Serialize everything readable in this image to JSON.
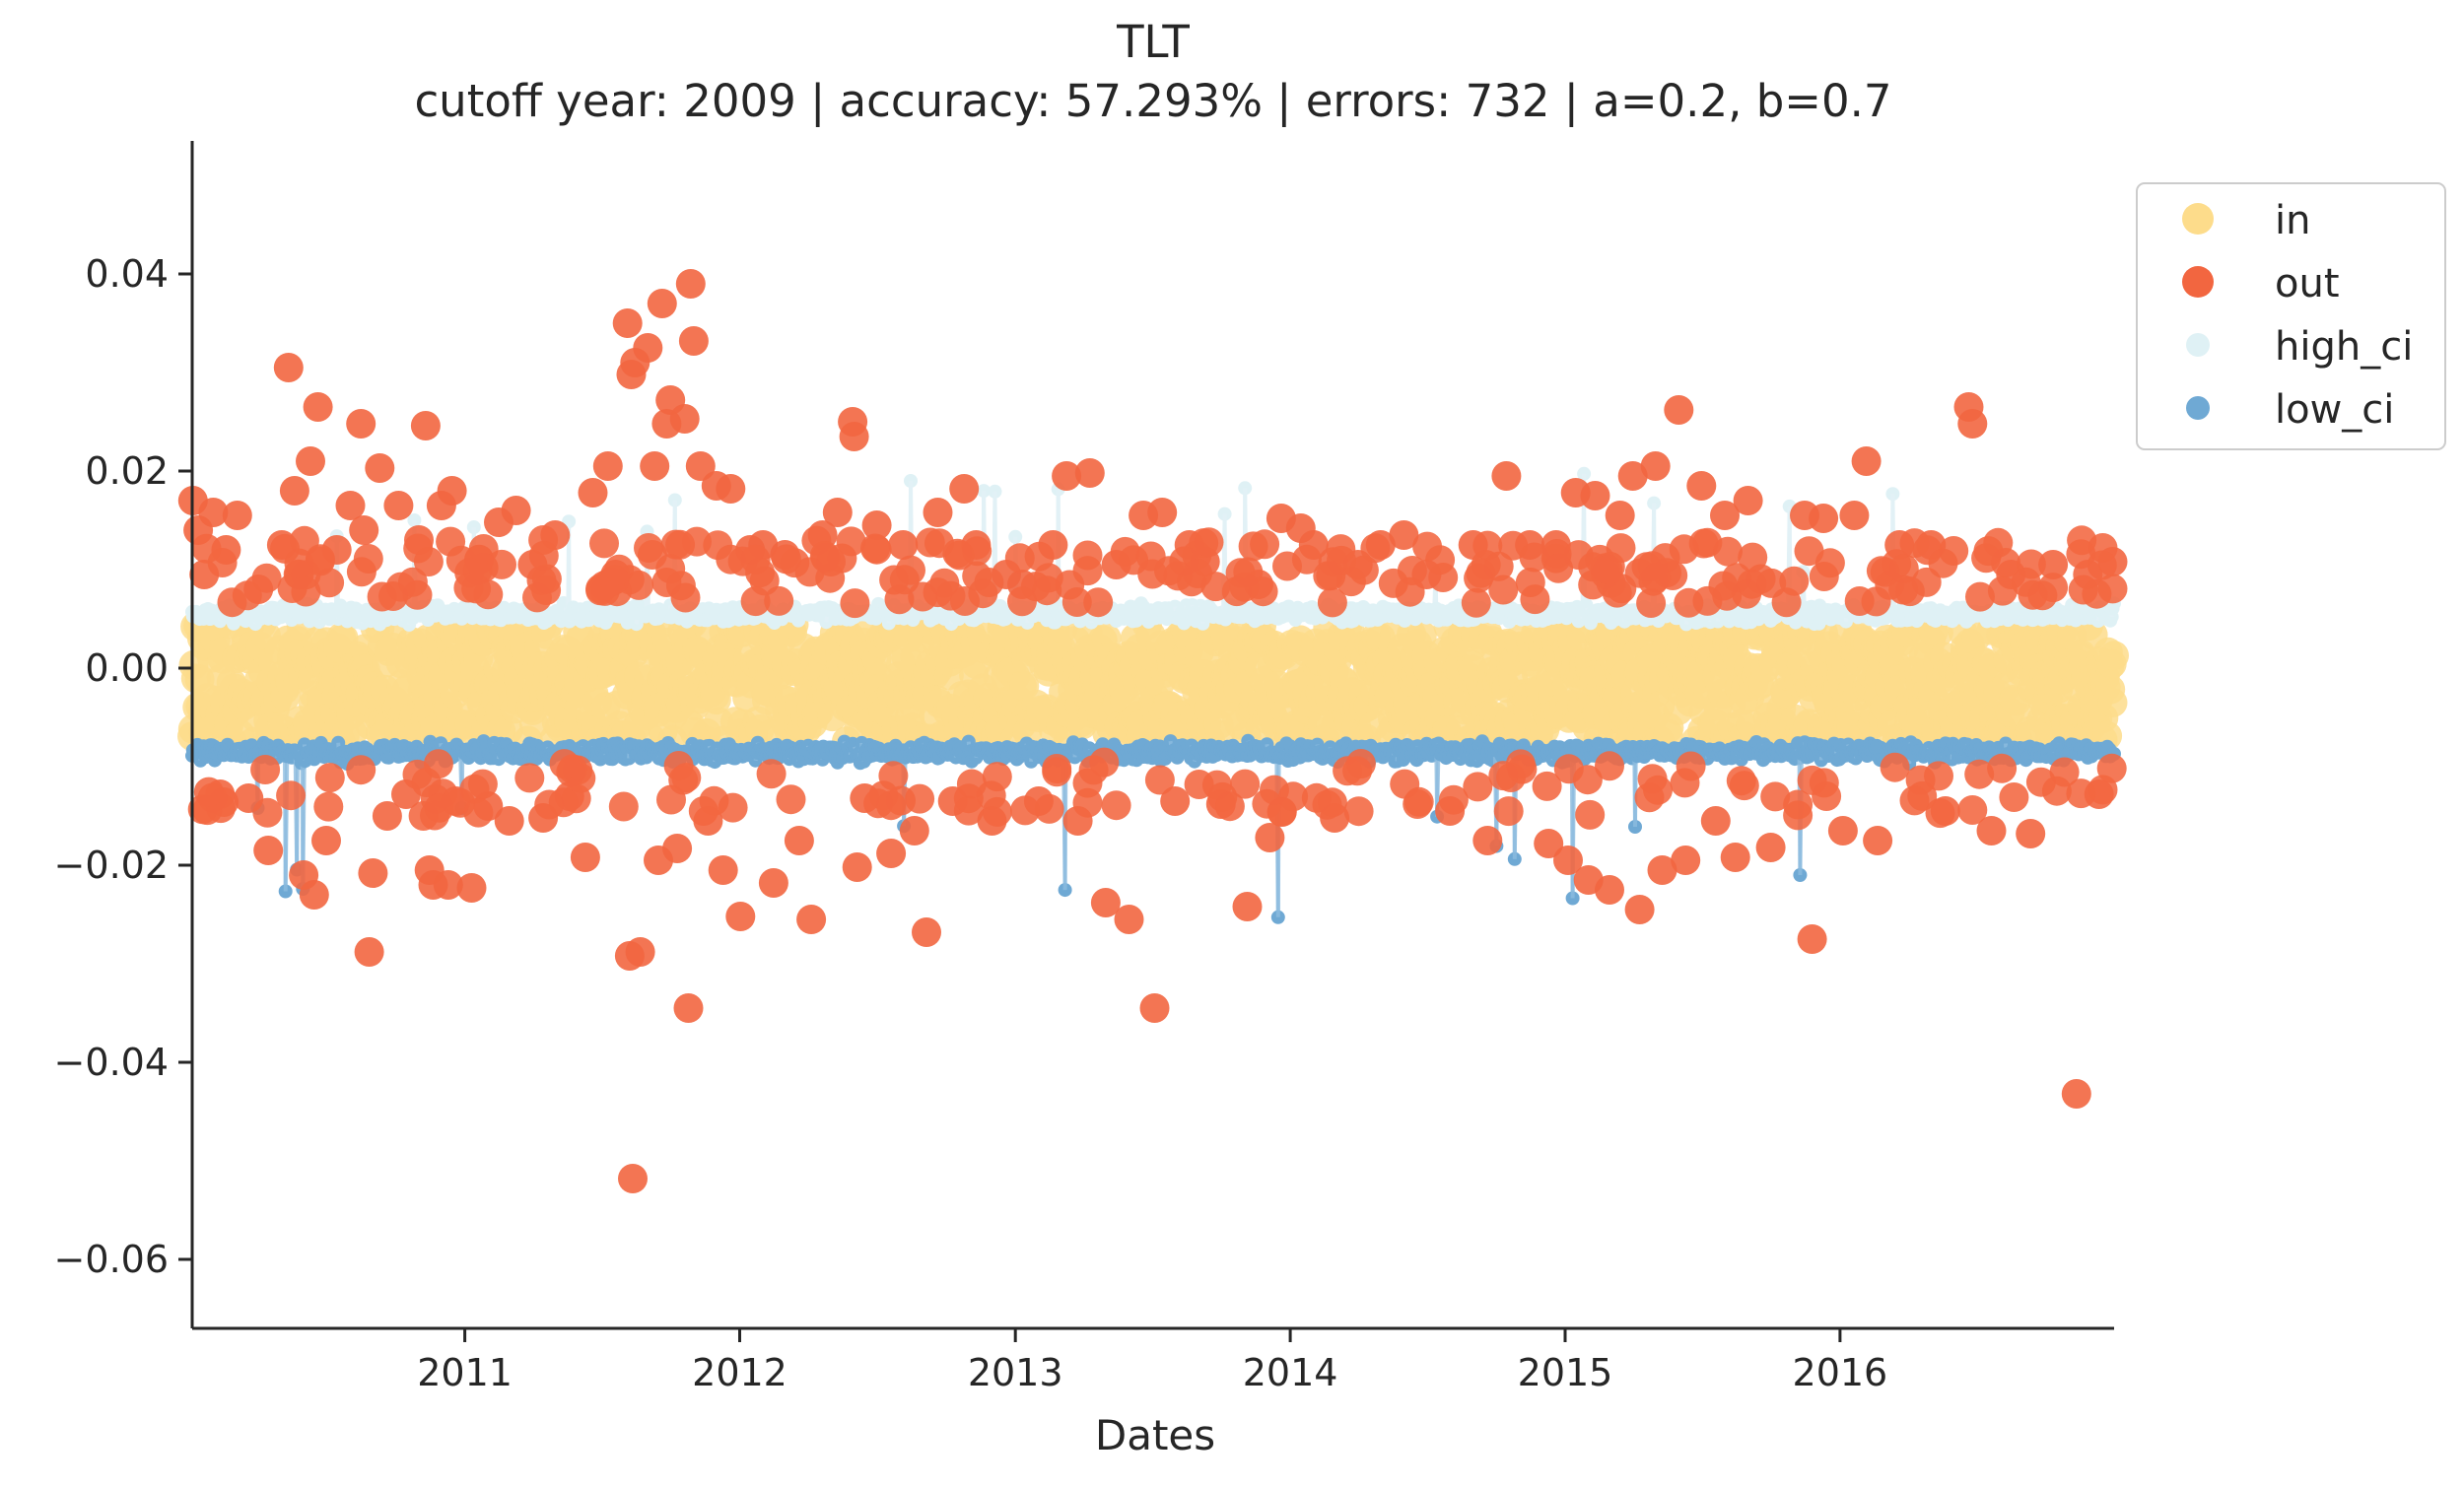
{
  "chart_data": {
    "type": "scatter",
    "title": "TLT",
    "subtitle": "cutoff year: 2009 | accuracy: 57.293% | errors: 732 | a=0.2, b=0.7",
    "xlabel": "Dates",
    "ylabel": "",
    "x_type": "date",
    "xlim": [
      "2010-01-04",
      "2016-12-30"
    ],
    "ylim": [
      -0.067,
      0.0535
    ],
    "x_ticks": [
      "2011",
      "2012",
      "2013",
      "2014",
      "2015",
      "2016"
    ],
    "y_ticks": [
      "0.04",
      "0.02",
      "0.00",
      "−0.02",
      "−0.04",
      "−0.06"
    ],
    "y_tick_values": [
      0.04,
      0.02,
      0.0,
      -0.02,
      -0.04,
      -0.06
    ],
    "grid": false,
    "legend_position": "upper-right-outside",
    "legend": [
      "in",
      "out",
      "high_ci",
      "low_ci"
    ],
    "colors": {
      "in": "#fddc8b",
      "out": "#f26640",
      "high_ci": "#dff1f5",
      "low_ci": "#6fa9d4",
      "high_ci_line": "#e2f1f6",
      "low_ci_line": "#8cbcde"
    },
    "bands": {
      "high_ci": {
        "center": 0.0055,
        "spread": 0.0012
      },
      "low_ci": {
        "center": -0.0085,
        "spread": 0.0013
      },
      "in": {
        "min": -0.0075,
        "max": 0.0045
      }
    },
    "series": [
      {
        "name": "out",
        "points": [
          [
            "2010-01-05",
            0.017
          ],
          [
            "2010-01-12",
            0.014
          ],
          [
            "2010-01-20",
            0.0095
          ],
          [
            "2010-02-01",
            0.0158
          ],
          [
            "2010-02-10",
            -0.0128
          ],
          [
            "2010-02-18",
            0.012
          ],
          [
            "2010-03-05",
            0.0155
          ],
          [
            "2010-03-20",
            -0.0132
          ],
          [
            "2010-04-02",
            0.008
          ],
          [
            "2010-04-15",
            -0.0185
          ],
          [
            "2010-05-03",
            0.0125
          ],
          [
            "2010-05-12",
            0.0305
          ],
          [
            "2010-05-20",
            0.018
          ],
          [
            "2010-06-01",
            -0.021
          ],
          [
            "2010-06-10",
            0.021
          ],
          [
            "2010-06-15",
            -0.023
          ],
          [
            "2010-06-20",
            0.0265
          ],
          [
            "2010-07-01",
            -0.0175
          ],
          [
            "2010-07-15",
            0.012
          ],
          [
            "2010-08-02",
            0.0165
          ],
          [
            "2010-08-16",
            0.0248
          ],
          [
            "2010-08-20",
            0.014
          ],
          [
            "2010-08-27",
            -0.0288
          ],
          [
            "2010-09-01",
            -0.0208
          ],
          [
            "2010-09-10",
            0.0203
          ],
          [
            "2010-09-20",
            -0.015
          ],
          [
            "2010-10-05",
            0.0165
          ],
          [
            "2010-10-15",
            -0.0128
          ],
          [
            "2010-11-01",
            0.013
          ],
          [
            "2010-11-10",
            0.0246
          ],
          [
            "2010-11-15",
            -0.0205
          ],
          [
            "2010-11-20",
            -0.022
          ],
          [
            "2010-12-01",
            0.0165
          ],
          [
            "2010-12-10",
            -0.022
          ],
          [
            "2010-12-15",
            0.018
          ],
          [
            "2010-12-20",
            -0.0135
          ],
          [
            "2011-01-10",
            -0.0223
          ],
          [
            "2011-01-20",
            0.011
          ],
          [
            "2011-02-01",
            -0.014
          ],
          [
            "2011-02-15",
            0.0148
          ],
          [
            "2011-03-01",
            -0.0155
          ],
          [
            "2011-03-10",
            0.016
          ],
          [
            "2011-04-01",
            0.0105
          ],
          [
            "2011-04-15",
            -0.0152
          ],
          [
            "2011-05-01",
            0.0135
          ],
          [
            "2011-05-20",
            -0.013
          ],
          [
            "2011-06-10",
            -0.0192
          ],
          [
            "2011-06-20",
            0.0178
          ],
          [
            "2011-07-10",
            0.0205
          ],
          [
            "2011-07-20",
            0.0095
          ],
          [
            "2011-08-05",
            0.035
          ],
          [
            "2011-08-08",
            -0.0292
          ],
          [
            "2011-08-10",
            0.0298
          ],
          [
            "2011-08-12",
            -0.0518
          ],
          [
            "2011-08-15",
            0.031
          ],
          [
            "2011-08-22",
            -0.0288
          ],
          [
            "2011-09-01",
            0.0325
          ],
          [
            "2011-09-10",
            0.0205
          ],
          [
            "2011-09-15",
            -0.0195
          ],
          [
            "2011-09-20",
            0.037
          ],
          [
            "2011-09-26",
            0.0248
          ],
          [
            "2011-10-01",
            0.0272
          ],
          [
            "2011-10-10",
            -0.0183
          ],
          [
            "2011-10-20",
            0.0253
          ],
          [
            "2011-10-25",
            -0.0345
          ],
          [
            "2011-10-28",
            0.039
          ],
          [
            "2011-11-01",
            0.0332
          ],
          [
            "2011-11-10",
            0.0205
          ],
          [
            "2011-11-20",
            -0.0155
          ],
          [
            "2011-12-01",
            0.0185
          ],
          [
            "2011-12-10",
            -0.0205
          ],
          [
            "2011-12-20",
            0.0182
          ],
          [
            "2012-01-02",
            -0.0252
          ],
          [
            "2012-01-15",
            0.012
          ],
          [
            "2012-02-01",
            0.0125
          ],
          [
            "2012-02-15",
            -0.0218
          ],
          [
            "2012-03-01",
            0.0115
          ],
          [
            "2012-03-20",
            -0.0175
          ],
          [
            "2012-04-05",
            -0.0255
          ],
          [
            "2012-04-20",
            0.0135
          ],
          [
            "2012-05-10",
            0.0158
          ],
          [
            "2012-05-30",
            0.025
          ],
          [
            "2012-06-01",
            0.0235
          ],
          [
            "2012-06-05",
            -0.0202
          ],
          [
            "2012-06-15",
            -0.0132
          ],
          [
            "2012-07-01",
            0.0145
          ],
          [
            "2012-07-20",
            -0.0188
          ],
          [
            "2012-08-05",
            0.0125
          ],
          [
            "2012-08-20",
            -0.0165
          ],
          [
            "2012-09-05",
            -0.0268
          ],
          [
            "2012-09-20",
            0.0158
          ],
          [
            "2012-10-10",
            -0.0135
          ],
          [
            "2012-10-25",
            0.0182
          ],
          [
            "2012-11-10",
            0.0125
          ],
          [
            "2012-12-01",
            -0.0155
          ],
          [
            "2012-12-20",
            0.0095
          ],
          [
            "2013-01-10",
            0.0085
          ],
          [
            "2013-02-01",
            -0.0135
          ],
          [
            "2013-02-20",
            0.0125
          ],
          [
            "2013-03-10",
            0.0195
          ],
          [
            "2013-03-25",
            -0.0155
          ],
          [
            "2013-04-10",
            0.0198
          ],
          [
            "2013-05-01",
            -0.0238
          ],
          [
            "2013-05-15",
            0.0105
          ],
          [
            "2013-06-01",
            -0.0255
          ],
          [
            "2013-06-20",
            0.0155
          ],
          [
            "2013-07-05",
            -0.0345
          ],
          [
            "2013-07-15",
            0.0158
          ],
          [
            "2013-08-01",
            -0.0135
          ],
          [
            "2013-08-20",
            0.0125
          ],
          [
            "2013-09-10",
            0.0108
          ],
          [
            "2013-10-01",
            -0.0138
          ],
          [
            "2013-11-05",
            -0.0242
          ],
          [
            "2013-11-20",
            0.0085
          ],
          [
            "2013-12-05",
            -0.0172
          ],
          [
            "2013-12-20",
            0.0152
          ],
          [
            "2014-01-15",
            0.0142
          ],
          [
            "2014-02-01",
            0.0125
          ],
          [
            "2014-03-01",
            -0.0152
          ],
          [
            "2014-04-01",
            0.0105
          ],
          [
            "2014-05-01",
            0.0125
          ],
          [
            "2014-06-01",
            0.0135
          ],
          [
            "2014-07-01",
            0.0095
          ],
          [
            "2014-08-01",
            -0.0145
          ],
          [
            "2014-09-01",
            0.0125
          ],
          [
            "2014-09-20",
            -0.0175
          ],
          [
            "2014-10-15",
            0.0195
          ],
          [
            "2014-11-15",
            0.0125
          ],
          [
            "2014-12-10",
            -0.0178
          ],
          [
            "2014-12-20",
            0.0125
          ],
          [
            "2015-01-05",
            -0.0195
          ],
          [
            "2015-01-15",
            0.0178
          ],
          [
            "2015-02-01",
            -0.0215
          ],
          [
            "2015-02-10",
            0.0175
          ],
          [
            "2015-03-01",
            -0.0225
          ],
          [
            "2015-03-15",
            0.0155
          ],
          [
            "2015-04-01",
            0.0195
          ],
          [
            "2015-04-10",
            -0.0245
          ],
          [
            "2015-05-01",
            0.0205
          ],
          [
            "2015-05-10",
            -0.0205
          ],
          [
            "2015-06-01",
            0.0262
          ],
          [
            "2015-06-10",
            -0.0195
          ],
          [
            "2015-07-01",
            0.0185
          ],
          [
            "2015-07-20",
            -0.0155
          ],
          [
            "2015-08-01",
            0.0155
          ],
          [
            "2015-08-15",
            -0.0192
          ],
          [
            "2015-09-01",
            0.017
          ],
          [
            "2015-10-01",
            -0.0182
          ],
          [
            "2015-11-15",
            0.0155
          ],
          [
            "2015-11-25",
            -0.0275
          ],
          [
            "2015-12-10",
            0.0152
          ],
          [
            "2016-01-05",
            -0.0165
          ],
          [
            "2016-01-20",
            0.0155
          ],
          [
            "2016-02-05",
            0.021
          ],
          [
            "2016-02-20",
            -0.0175
          ],
          [
            "2016-03-20",
            0.0125
          ],
          [
            "2016-05-01",
            0.0125
          ],
          [
            "2016-05-20",
            -0.0145
          ],
          [
            "2016-06-20",
            0.0265
          ],
          [
            "2016-06-25",
            0.0248
          ],
          [
            "2016-07-20",
            -0.0165
          ],
          [
            "2016-08-15",
            0.0095
          ],
          [
            "2016-09-10",
            -0.0168
          ],
          [
            "2016-10-10",
            0.0105
          ],
          [
            "2016-11-10",
            -0.0432
          ],
          [
            "2016-11-25",
            0.0095
          ],
          [
            "2016-12-10",
            -0.0128
          ],
          [
            "2016-12-28",
            0.0108
          ]
        ]
      },
      {
        "name": "in"
      },
      {
        "name": "high_ci"
      },
      {
        "name": "low_ci"
      }
    ]
  }
}
